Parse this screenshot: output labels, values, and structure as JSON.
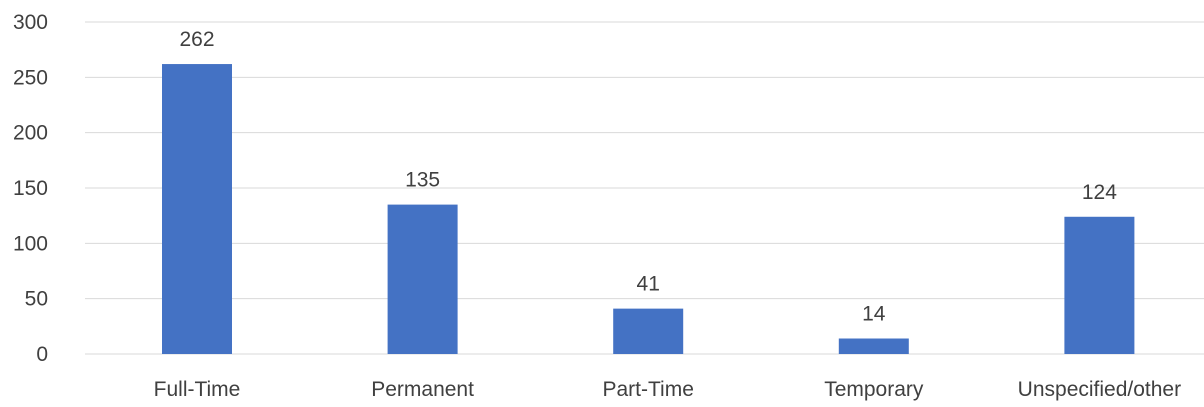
{
  "chart_data": {
    "type": "bar",
    "categories": [
      "Full-Time",
      "Permanent",
      "Part-Time",
      "Temporary",
      "Unspecified/other"
    ],
    "values": [
      262,
      135,
      41,
      14,
      124
    ],
    "title": "",
    "xlabel": "",
    "ylabel": "",
    "ylim": [
      0,
      300
    ],
    "yticks": [
      0,
      50,
      100,
      150,
      200,
      250,
      300
    ],
    "grid": true,
    "legend": "none",
    "data_labels": true,
    "bar_color": "#4472c4"
  }
}
